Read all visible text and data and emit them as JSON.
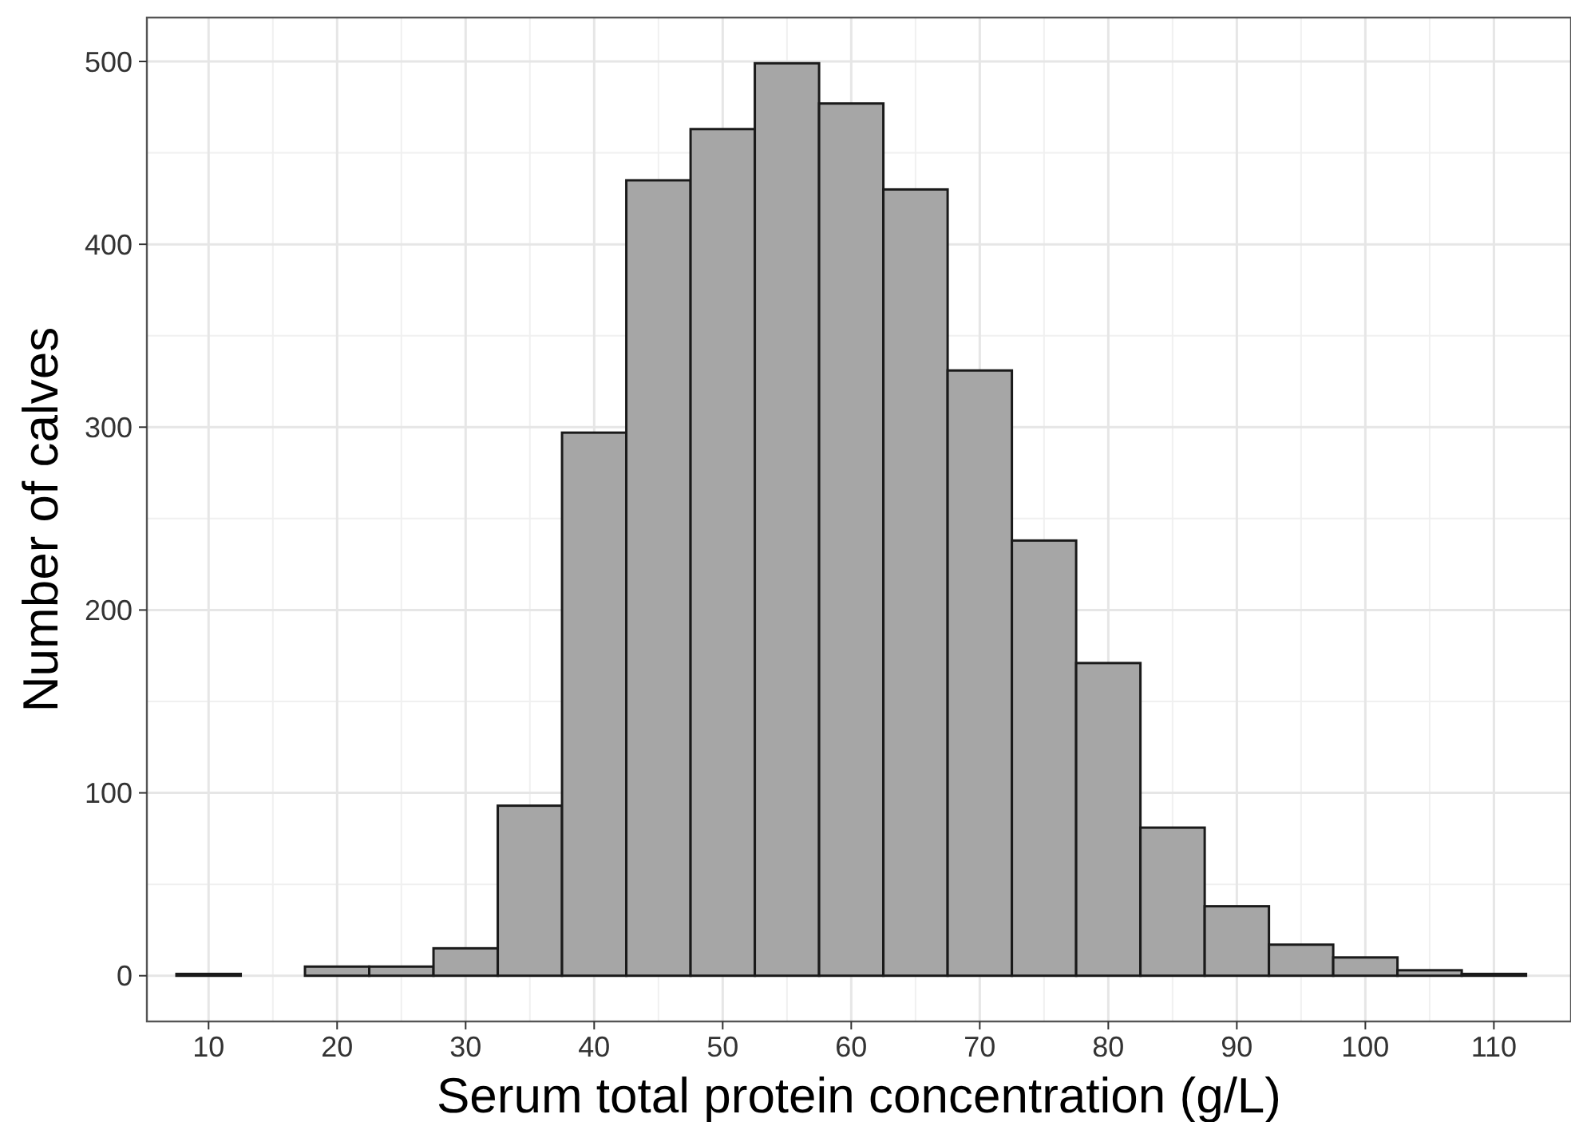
{
  "chart_data": {
    "type": "histogram",
    "xlabel": "Serum total protein concentration (g/L)",
    "ylabel": "Number of calves",
    "bins": [
      7.5,
      12.5,
      17.5,
      22.5,
      27.5,
      32.5,
      37.5,
      42.5,
      47.5,
      52.5,
      57.5,
      62.5,
      67.5,
      72.5,
      77.5,
      82.5,
      87.5,
      92.5,
      97.5,
      102.5,
      107.5,
      112.5
    ],
    "values": [
      1,
      0,
      5,
      5,
      15,
      93,
      297,
      435,
      463,
      499,
      477,
      430,
      331,
      238,
      171,
      81,
      38,
      17,
      10,
      3,
      1
    ],
    "color": "#a6a6a6",
    "xlim": [
      5.2,
      116
    ],
    "xticks": [
      10,
      20,
      30,
      40,
      50,
      60,
      70,
      80,
      90,
      100,
      110
    ],
    "ylim": [
      -25,
      524
    ],
    "yticks": [
      0,
      100,
      200,
      300,
      400,
      500
    ],
    "grid": true
  }
}
